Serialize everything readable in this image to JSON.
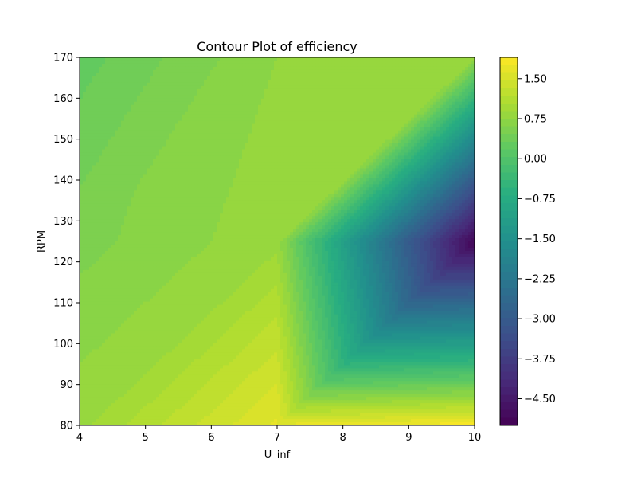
{
  "chart_data": {
    "type": "contour",
    "title": "Contour Plot of efficiency",
    "xlabel": "U_inf",
    "ylabel": "RPM",
    "xlim": [
      4,
      10
    ],
    "ylim": [
      80,
      170
    ],
    "x_ticks": [
      "4",
      "5",
      "6",
      "7",
      "8",
      "9",
      "10"
    ],
    "y_ticks": [
      "80",
      "90",
      "100",
      "110",
      "120",
      "130",
      "140",
      "150",
      "160",
      "170"
    ],
    "colorbar": {
      "range": [
        -5.0,
        1.9
      ],
      "ticks": [
        "−4.50",
        "−3.75",
        "−3.00",
        "−2.25",
        "−1.50",
        "−0.75",
        "0.00",
        "0.75",
        "1.50"
      ],
      "colormap": "viridis"
    },
    "grid": false,
    "x": [
      4,
      7,
      10
    ],
    "y": [
      80,
      125,
      170
    ],
    "z": [
      [
        0.85,
        1.65,
        1.85
      ],
      [
        0.55,
        0.85,
        -4.9
      ],
      [
        0.25,
        0.75,
        0.8
      ]
    ]
  }
}
